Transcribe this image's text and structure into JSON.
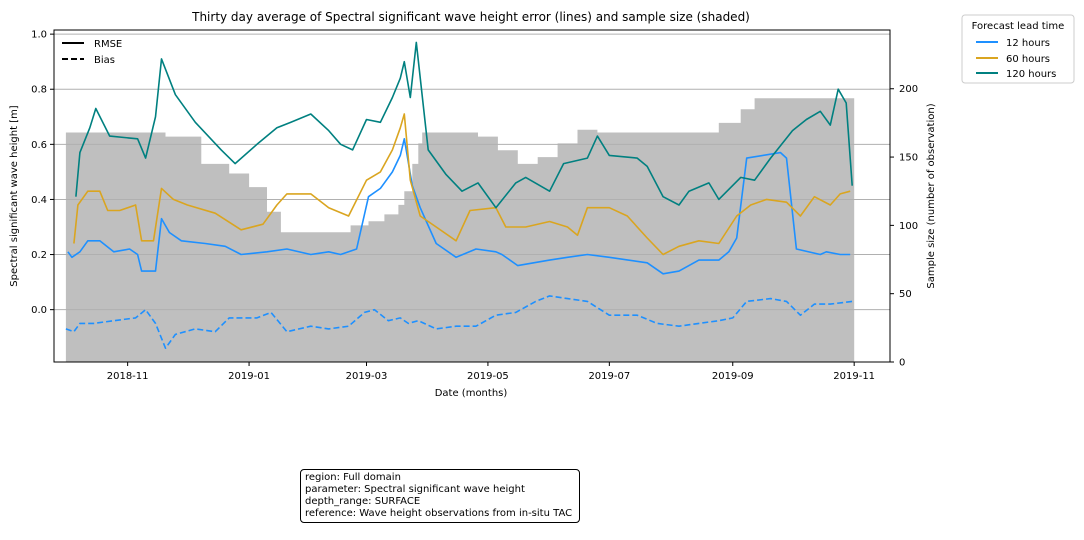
{
  "info_box": {
    "line1": "region: Full domain",
    "line2": "parameter: Spectral significant wave height",
    "line3": "depth_range: SURFACE",
    "line4": "reference: Wave height observations from in-situ TAC"
  },
  "chart_data": {
    "type": "line",
    "title": "Thirty day average of Spectral significant wave height error (lines) and sample size (shaded)",
    "xlabel": "Date (months)",
    "ylabel": "Spectral significant wave height [m]",
    "y2label": "Sample size (number of observation)",
    "x_ticks": [
      "2018-11",
      "2019-01",
      "2019-03",
      "2019-05",
      "2019-07",
      "2019-09",
      "2019-11"
    ],
    "y_ticks": [
      "0.0",
      "0.2",
      "0.4",
      "0.6",
      "0.8",
      "1.0"
    ],
    "y2_ticks": [
      "0",
      "50",
      "100",
      "150",
      "200"
    ],
    "xlim": [
      "2018-09-25",
      "2019-11-19"
    ],
    "ylim": [
      -0.19,
      1.015
    ],
    "y2lim": [
      0,
      243
    ],
    "grid": "horizontal",
    "style_legend": {
      "position": "top-left",
      "entries": [
        {
          "label": "RMSE",
          "dash": "solid"
        },
        {
          "label": "Bias",
          "dash": "dashed"
        }
      ]
    },
    "legend": {
      "title": "Forecast lead time",
      "position": "outside-right",
      "entries": [
        {
          "label": "12 hours",
          "color": "#1E90FF"
        },
        {
          "label": "60 hours",
          "color": "#DAA520"
        },
        {
          "label": "120 hours",
          "color": "#008080"
        }
      ]
    },
    "sample_size": {
      "color": "#BFBFBF",
      "x": [
        "2018-10-01",
        "2018-11-10",
        "2018-11-20",
        "2018-12-08",
        "2018-12-15",
        "2018-12-22",
        "2019-01-01",
        "2019-01-10",
        "2019-01-17",
        "2019-01-31",
        "2019-02-14",
        "2019-02-21",
        "2019-03-02",
        "2019-03-10",
        "2019-03-17",
        "2019-03-20",
        "2019-03-24",
        "2019-03-27",
        "2019-03-29",
        "2019-04-16",
        "2019-04-26",
        "2019-05-06",
        "2019-05-16",
        "2019-05-26",
        "2019-06-05",
        "2019-06-15",
        "2019-06-25",
        "2019-07-05",
        "2019-07-31",
        "2019-08-15",
        "2019-08-25",
        "2019-09-05",
        "2019-09-12",
        "2019-11-01"
      ],
      "values": [
        168,
        168,
        165,
        145,
        145,
        138,
        128,
        110,
        95,
        95,
        95,
        100,
        103,
        108,
        115,
        125,
        145,
        160,
        168,
        168,
        165,
        155,
        145,
        150,
        160,
        170,
        168,
        168,
        168,
        168,
        175,
        185,
        193,
        193
      ]
    },
    "series": [
      {
        "name": "12 hours",
        "metric": "RMSE",
        "color": "#1E90FF",
        "dash": "solid",
        "x": [
          "2018-10-02",
          "2018-10-04",
          "2018-10-08",
          "2018-10-12",
          "2018-10-18",
          "2018-10-25",
          "2018-11-02",
          "2018-11-06",
          "2018-11-08",
          "2018-11-15",
          "2018-11-18",
          "2018-11-22",
          "2018-11-28",
          "2018-12-10",
          "2018-12-20",
          "2018-12-28",
          "2019-01-10",
          "2019-01-20",
          "2019-02-01",
          "2019-02-10",
          "2019-02-16",
          "2019-02-20",
          "2019-02-24",
          "2019-03-02",
          "2019-03-08",
          "2019-03-14",
          "2019-03-18",
          "2019-03-20",
          "2019-03-24",
          "2019-03-28",
          "2019-04-05",
          "2019-04-15",
          "2019-04-25",
          "2019-05-05",
          "2019-05-08",
          "2019-05-16",
          "2019-06-01",
          "2019-06-10",
          "2019-06-20",
          "2019-07-01",
          "2019-07-20",
          "2019-07-28",
          "2019-08-05",
          "2019-08-15",
          "2019-08-25",
          "2019-08-30",
          "2019-09-03",
          "2019-09-08",
          "2019-09-25",
          "2019-09-28",
          "2019-10-03",
          "2019-10-15",
          "2019-10-18",
          "2019-10-25",
          "2019-10-30"
        ],
        "values": [
          0.21,
          0.19,
          0.21,
          0.25,
          0.25,
          0.21,
          0.22,
          0.2,
          0.14,
          0.14,
          0.33,
          0.28,
          0.25,
          0.24,
          0.23,
          0.2,
          0.21,
          0.22,
          0.2,
          0.21,
          0.2,
          0.21,
          0.22,
          0.41,
          0.44,
          0.5,
          0.56,
          0.62,
          0.45,
          0.37,
          0.24,
          0.19,
          0.22,
          0.21,
          0.2,
          0.16,
          0.18,
          0.19,
          0.2,
          0.19,
          0.17,
          0.13,
          0.14,
          0.18,
          0.18,
          0.21,
          0.26,
          0.55,
          0.57,
          0.55,
          0.22,
          0.2,
          0.21,
          0.2,
          0.2
        ]
      },
      {
        "name": "60 hours",
        "metric": "RMSE",
        "color": "#DAA520",
        "dash": "solid",
        "x": [
          "2018-10-05",
          "2018-10-07",
          "2018-10-12",
          "2018-10-18",
          "2018-10-22",
          "2018-10-28",
          "2018-11-05",
          "2018-11-08",
          "2018-11-14",
          "2018-11-18",
          "2018-11-24",
          "2018-12-01",
          "2018-12-15",
          "2018-12-28",
          "2019-01-08",
          "2019-01-15",
          "2019-01-20",
          "2019-02-01",
          "2019-02-10",
          "2019-02-20",
          "2019-03-01",
          "2019-03-08",
          "2019-03-14",
          "2019-03-18",
          "2019-03-20",
          "2019-03-23",
          "2019-03-28",
          "2019-04-05",
          "2019-04-15",
          "2019-04-22",
          "2019-05-05",
          "2019-05-10",
          "2019-05-20",
          "2019-06-01",
          "2019-06-10",
          "2019-06-15",
          "2019-06-20",
          "2019-07-01",
          "2019-07-10",
          "2019-07-20",
          "2019-07-28",
          "2019-08-05",
          "2019-08-15",
          "2019-08-25",
          "2019-09-03",
          "2019-09-10",
          "2019-09-18",
          "2019-09-28",
          "2019-10-05",
          "2019-10-12",
          "2019-10-20",
          "2019-10-25",
          "2019-10-30"
        ],
        "values": [
          0.24,
          0.38,
          0.43,
          0.43,
          0.36,
          0.36,
          0.38,
          0.25,
          0.25,
          0.44,
          0.4,
          0.38,
          0.35,
          0.29,
          0.31,
          0.38,
          0.42,
          0.42,
          0.37,
          0.34,
          0.47,
          0.5,
          0.58,
          0.66,
          0.71,
          0.47,
          0.34,
          0.3,
          0.25,
          0.36,
          0.37,
          0.3,
          0.3,
          0.32,
          0.3,
          0.27,
          0.37,
          0.37,
          0.34,
          0.26,
          0.2,
          0.23,
          0.25,
          0.24,
          0.34,
          0.38,
          0.4,
          0.39,
          0.34,
          0.41,
          0.38,
          0.42,
          0.43
        ]
      },
      {
        "name": "120 hours",
        "metric": "RMSE",
        "color": "#008080",
        "dash": "solid",
        "x": [
          "2018-10-06",
          "2018-10-08",
          "2018-10-13",
          "2018-10-16",
          "2018-10-23",
          "2018-11-06",
          "2018-11-10",
          "2018-11-15",
          "2018-11-18",
          "2018-11-25",
          "2018-12-05",
          "2018-12-18",
          "2018-12-25",
          "2019-01-05",
          "2019-01-15",
          "2019-01-22",
          "2019-02-01",
          "2019-02-10",
          "2019-02-16",
          "2019-02-22",
          "2019-03-01",
          "2019-03-08",
          "2019-03-14",
          "2019-03-18",
          "2019-03-20",
          "2019-03-23",
          "2019-03-26",
          "2019-04-01",
          "2019-04-10",
          "2019-04-18",
          "2019-04-26",
          "2019-05-05",
          "2019-05-15",
          "2019-05-20",
          "2019-06-01",
          "2019-06-08",
          "2019-06-20",
          "2019-06-25",
          "2019-07-01",
          "2019-07-15",
          "2019-07-20",
          "2019-07-28",
          "2019-08-05",
          "2019-08-10",
          "2019-08-20",
          "2019-08-25",
          "2019-09-05",
          "2019-09-12",
          "2019-09-20",
          "2019-10-01",
          "2019-10-08",
          "2019-10-15",
          "2019-10-20",
          "2019-10-24",
          "2019-10-28",
          "2019-10-31"
        ],
        "values": [
          0.41,
          0.57,
          0.66,
          0.73,
          0.63,
          0.62,
          0.55,
          0.7,
          0.91,
          0.78,
          0.68,
          0.58,
          0.53,
          0.6,
          0.66,
          0.68,
          0.71,
          0.65,
          0.6,
          0.58,
          0.69,
          0.68,
          0.77,
          0.84,
          0.9,
          0.77,
          0.97,
          0.58,
          0.49,
          0.43,
          0.46,
          0.37,
          0.46,
          0.48,
          0.43,
          0.53,
          0.55,
          0.63,
          0.56,
          0.55,
          0.52,
          0.41,
          0.38,
          0.43,
          0.46,
          0.4,
          0.48,
          0.47,
          0.55,
          0.65,
          0.69,
          0.72,
          0.67,
          0.8,
          0.75,
          0.45
        ]
      },
      {
        "name": "12 hours",
        "metric": "Bias",
        "color": "#1E90FF",
        "dash": "dashed",
        "x": [
          "2018-10-01",
          "2018-10-05",
          "2018-10-08",
          "2018-10-15",
          "2018-10-25",
          "2018-11-05",
          "2018-11-10",
          "2018-11-15",
          "2018-11-20",
          "2018-11-25",
          "2018-12-05",
          "2018-12-15",
          "2018-12-22",
          "2019-01-05",
          "2019-01-12",
          "2019-01-20",
          "2019-02-01",
          "2019-02-10",
          "2019-02-20",
          "2019-02-28",
          "2019-03-05",
          "2019-03-12",
          "2019-03-18",
          "2019-03-22",
          "2019-03-27",
          "2019-04-05",
          "2019-04-15",
          "2019-04-25",
          "2019-05-05",
          "2019-05-15",
          "2019-05-25",
          "2019-06-01",
          "2019-06-10",
          "2019-06-20",
          "2019-07-01",
          "2019-07-15",
          "2019-07-25",
          "2019-08-05",
          "2019-08-15",
          "2019-08-25",
          "2019-09-01",
          "2019-09-08",
          "2019-09-20",
          "2019-09-28",
          "2019-10-05",
          "2019-10-12",
          "2019-10-20",
          "2019-10-31"
        ],
        "values": [
          -0.07,
          -0.08,
          -0.05,
          -0.05,
          -0.04,
          -0.03,
          0.0,
          -0.05,
          -0.14,
          -0.09,
          -0.07,
          -0.08,
          -0.03,
          -0.03,
          -0.01,
          -0.08,
          -0.06,
          -0.07,
          -0.06,
          -0.01,
          0.0,
          -0.04,
          -0.03,
          -0.05,
          -0.04,
          -0.07,
          -0.06,
          -0.06,
          -0.02,
          -0.01,
          0.03,
          0.05,
          0.04,
          0.03,
          -0.02,
          -0.02,
          -0.05,
          -0.06,
          -0.05,
          -0.04,
          -0.03,
          0.03,
          0.04,
          0.03,
          -0.02,
          0.02,
          0.02,
          0.03
        ]
      }
    ]
  }
}
